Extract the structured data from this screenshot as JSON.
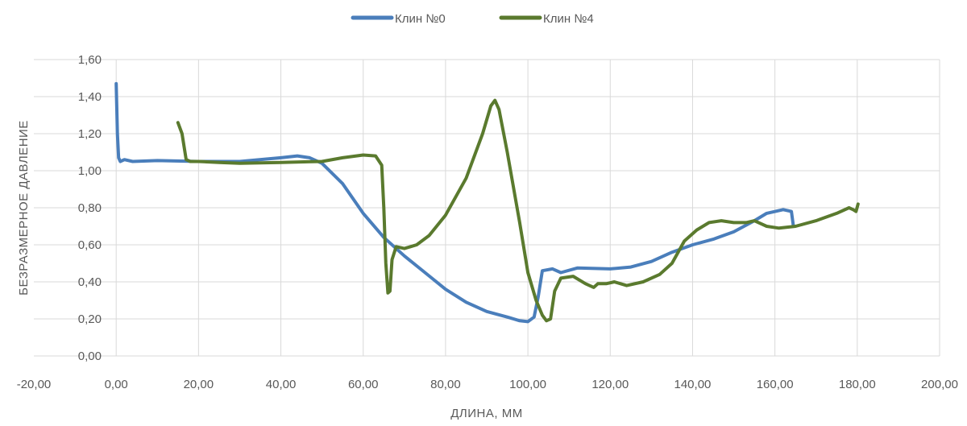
{
  "chart_data": {
    "type": "line",
    "xlabel": "ДЛИНА, ММ",
    "ylabel": "БЕЗРАЗМЕРНОЕ ДАВЛЕНИЕ",
    "xlim": [
      -20,
      200
    ],
    "ylim": [
      0,
      1.6
    ],
    "x_ticks": [
      -20,
      0,
      20,
      40,
      60,
      80,
      100,
      120,
      140,
      160,
      180,
      200
    ],
    "x_tick_labels": [
      "-20,00",
      "0,00",
      "20,00",
      "40,00",
      "60,00",
      "80,00",
      "100,00",
      "120,00",
      "140,00",
      "160,00",
      "180,00",
      "200,00"
    ],
    "y_ticks": [
      0,
      0.2,
      0.4,
      0.6,
      0.8,
      1.0,
      1.2,
      1.4,
      1.6
    ],
    "y_tick_labels": [
      "0,00",
      "0,20",
      "0,40",
      "0,60",
      "0,80",
      "1,00",
      "1,20",
      "1,40",
      "1,60"
    ],
    "grid": true,
    "legend_position": "top-center",
    "series": [
      {
        "name": "Клин №0",
        "color": "#4a7ebb",
        "points": [
          [
            0,
            1.47
          ],
          [
            0.3,
            1.2
          ],
          [
            0.6,
            1.07
          ],
          [
            1,
            1.05
          ],
          [
            2,
            1.06
          ],
          [
            4,
            1.05
          ],
          [
            10,
            1.055
          ],
          [
            20,
            1.05
          ],
          [
            30,
            1.05
          ],
          [
            40,
            1.07
          ],
          [
            44,
            1.08
          ],
          [
            47,
            1.07
          ],
          [
            50,
            1.04
          ],
          [
            55,
            0.93
          ],
          [
            60,
            0.77
          ],
          [
            65,
            0.64
          ],
          [
            70,
            0.54
          ],
          [
            75,
            0.45
          ],
          [
            80,
            0.36
          ],
          [
            85,
            0.29
          ],
          [
            90,
            0.24
          ],
          [
            95,
            0.21
          ],
          [
            98,
            0.19
          ],
          [
            100,
            0.185
          ],
          [
            101.5,
            0.21
          ],
          [
            102.5,
            0.32
          ],
          [
            103.5,
            0.46
          ],
          [
            106,
            0.47
          ],
          [
            108,
            0.45
          ],
          [
            112,
            0.475
          ],
          [
            120,
            0.47
          ],
          [
            125,
            0.48
          ],
          [
            130,
            0.51
          ],
          [
            135,
            0.56
          ],
          [
            140,
            0.6
          ],
          [
            145,
            0.63
          ],
          [
            150,
            0.67
          ],
          [
            155,
            0.73
          ],
          [
            158,
            0.77
          ],
          [
            162,
            0.79
          ],
          [
            164,
            0.78
          ],
          [
            164.5,
            0.7
          ]
        ]
      },
      {
        "name": "Клин №4",
        "color": "#5a7a2e",
        "points": [
          [
            15,
            1.26
          ],
          [
            16,
            1.2
          ],
          [
            17,
            1.06
          ],
          [
            18,
            1.05
          ],
          [
            20,
            1.05
          ],
          [
            25,
            1.045
          ],
          [
            30,
            1.04
          ],
          [
            40,
            1.045
          ],
          [
            50,
            1.05
          ],
          [
            55,
            1.07
          ],
          [
            60,
            1.085
          ],
          [
            63,
            1.08
          ],
          [
            64.5,
            1.03
          ],
          [
            65,
            0.8
          ],
          [
            65.5,
            0.5
          ],
          [
            66,
            0.34
          ],
          [
            66.5,
            0.35
          ],
          [
            67,
            0.52
          ],
          [
            68,
            0.59
          ],
          [
            70,
            0.58
          ],
          [
            73,
            0.6
          ],
          [
            76,
            0.65
          ],
          [
            80,
            0.76
          ],
          [
            85,
            0.96
          ],
          [
            89,
            1.2
          ],
          [
            91,
            1.35
          ],
          [
            92,
            1.38
          ],
          [
            93,
            1.33
          ],
          [
            95,
            1.1
          ],
          [
            98,
            0.72
          ],
          [
            100,
            0.45
          ],
          [
            102,
            0.3
          ],
          [
            103.5,
            0.22
          ],
          [
            104.5,
            0.19
          ],
          [
            105.5,
            0.2
          ],
          [
            106.5,
            0.35
          ],
          [
            108,
            0.42
          ],
          [
            111,
            0.43
          ],
          [
            114,
            0.39
          ],
          [
            116,
            0.37
          ],
          [
            117,
            0.39
          ],
          [
            119,
            0.39
          ],
          [
            121,
            0.4
          ],
          [
            124,
            0.38
          ],
          [
            128,
            0.4
          ],
          [
            132,
            0.44
          ],
          [
            135,
            0.5
          ],
          [
            138,
            0.62
          ],
          [
            141,
            0.68
          ],
          [
            144,
            0.72
          ],
          [
            147,
            0.73
          ],
          [
            150,
            0.72
          ],
          [
            153,
            0.72
          ],
          [
            155,
            0.73
          ],
          [
            158,
            0.7
          ],
          [
            161,
            0.69
          ],
          [
            165,
            0.7
          ],
          [
            170,
            0.73
          ],
          [
            175,
            0.77
          ],
          [
            178,
            0.8
          ],
          [
            179,
            0.79
          ],
          [
            179.7,
            0.78
          ],
          [
            180.2,
            0.82
          ]
        ]
      }
    ]
  }
}
